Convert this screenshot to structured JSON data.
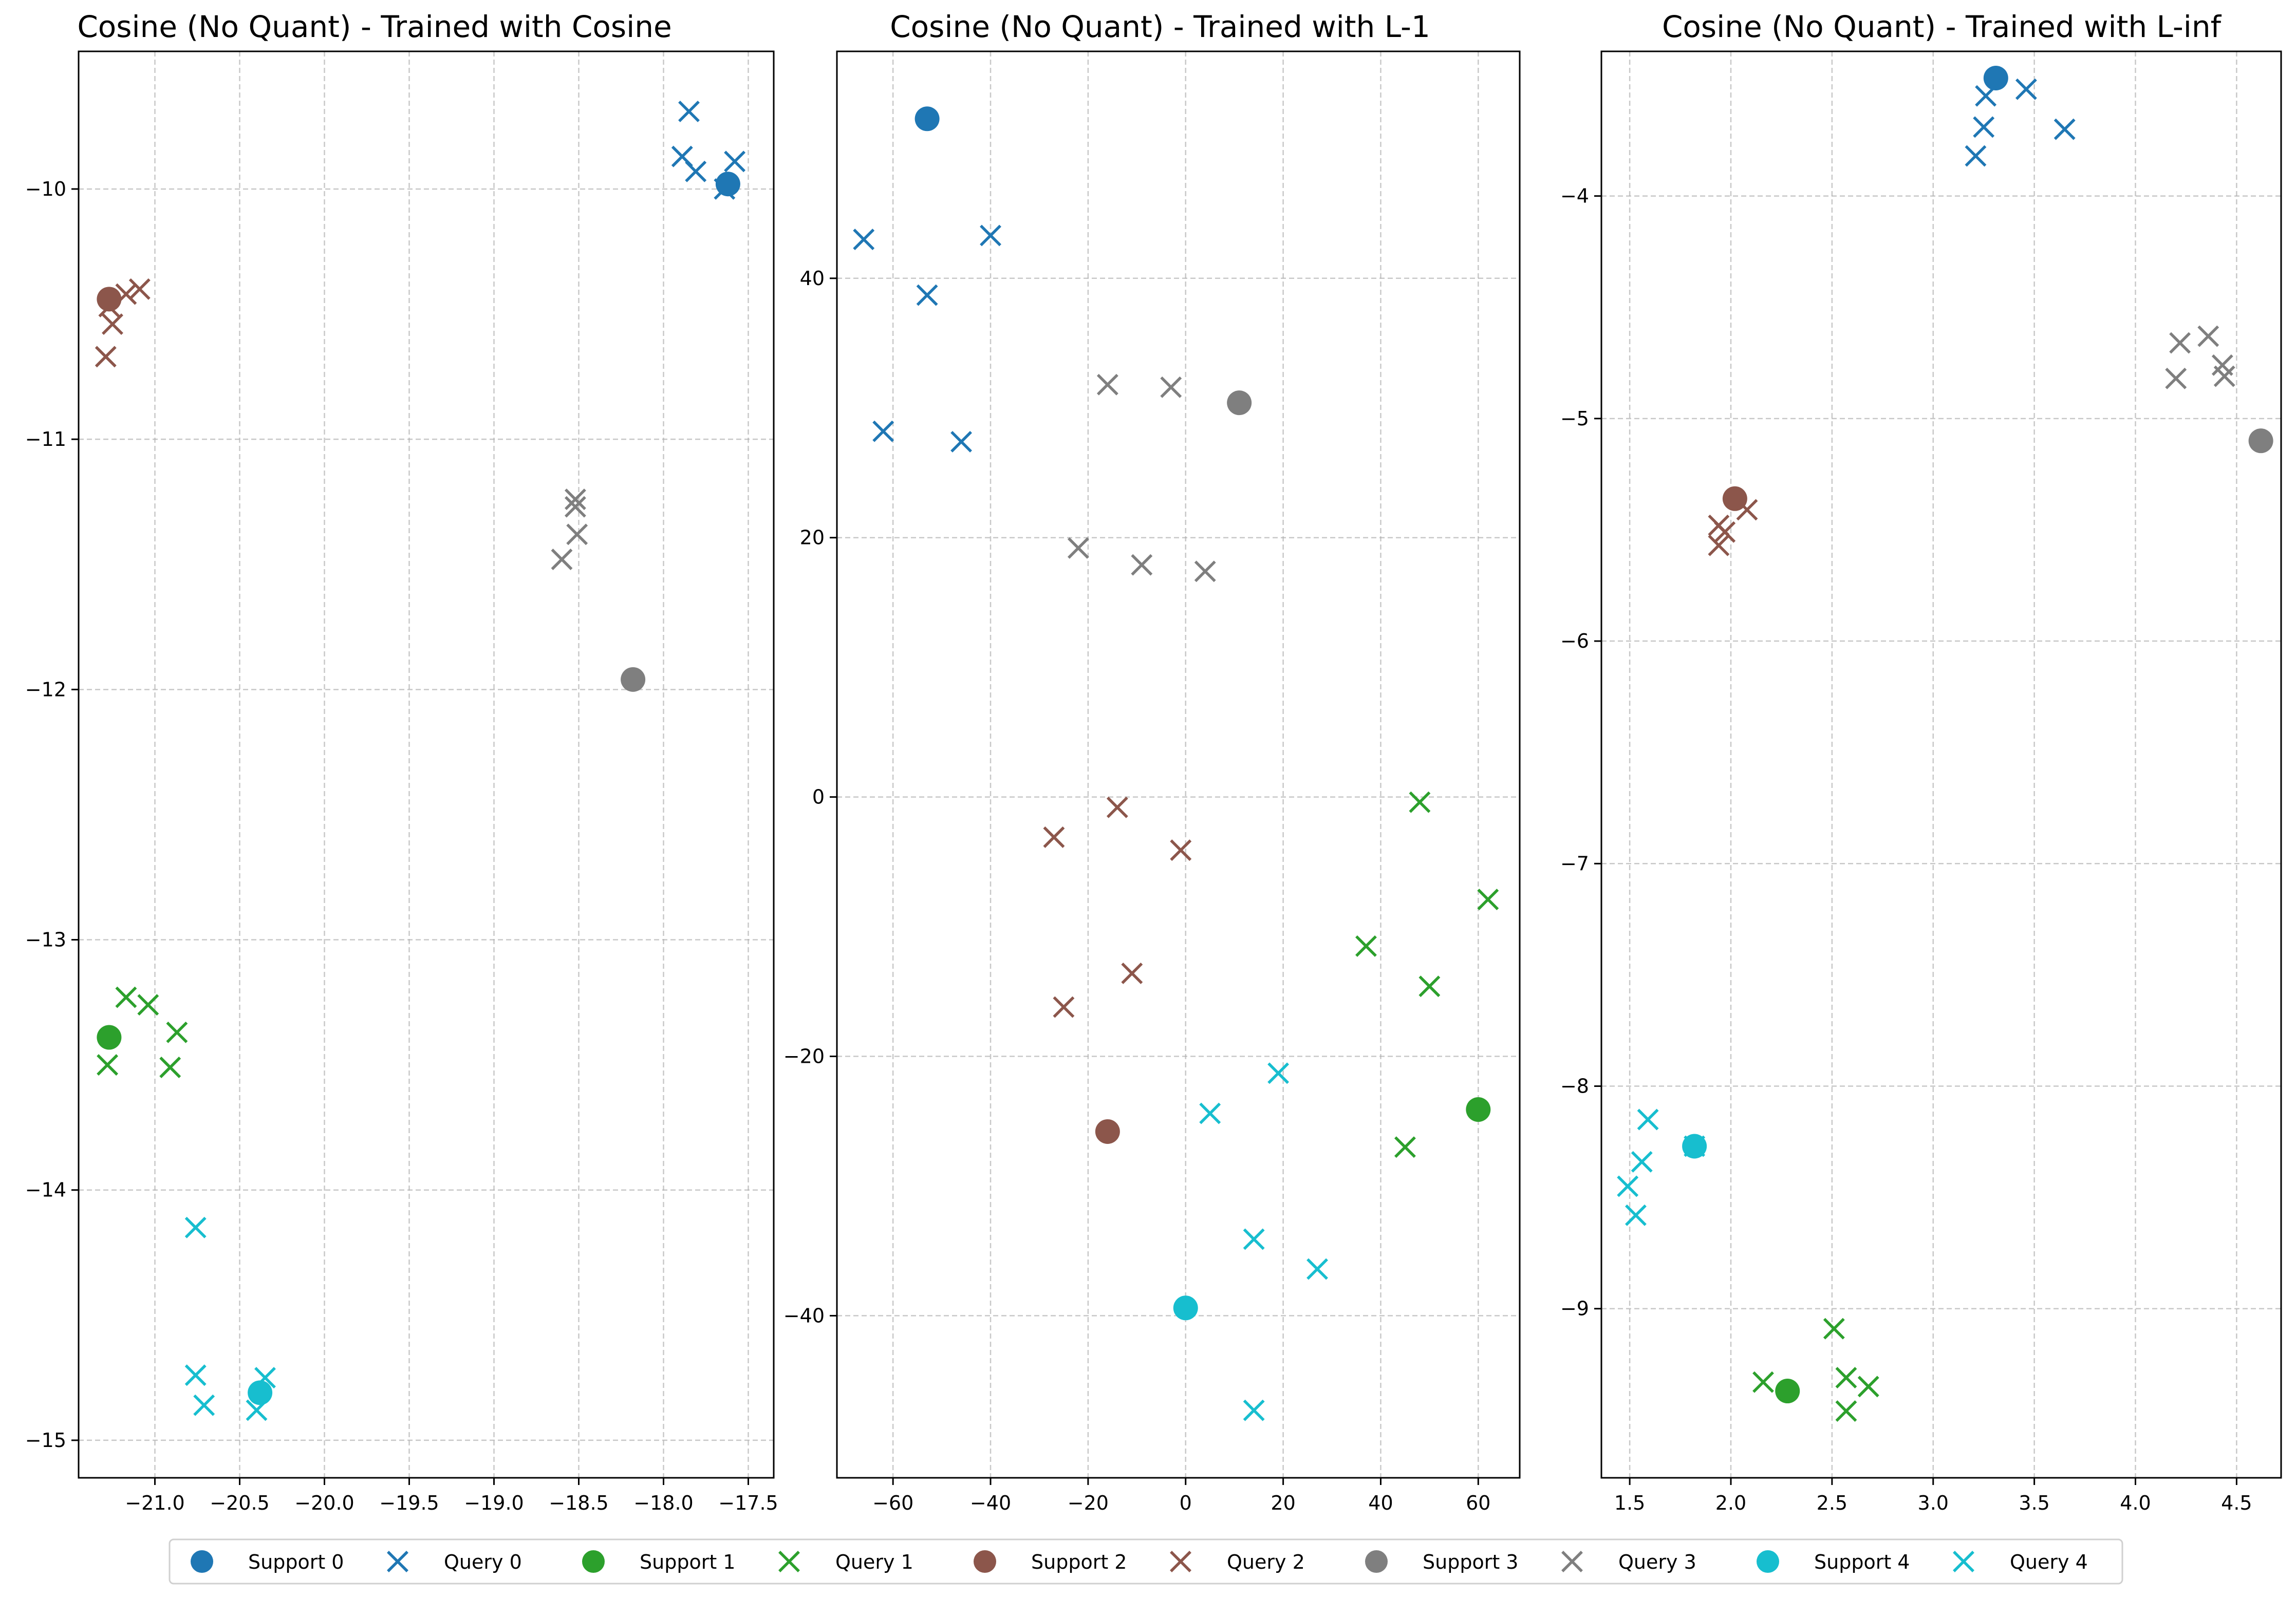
{
  "colors": {
    "class0": "#1f77b4",
    "class1": "#2ca02c",
    "class2": "#8c564b",
    "class3": "#7f7f7f",
    "class4": "#17becf",
    "grid": "#b0b0b0",
    "axis": "#000000"
  },
  "legend": {
    "placement": "bottom-center",
    "entries": [
      {
        "label": "Support 0",
        "marker": "circle",
        "class": 0
      },
      {
        "label": "Query 0",
        "marker": "x",
        "class": 0
      },
      {
        "label": "Support 1",
        "marker": "circle",
        "class": 1
      },
      {
        "label": "Query 1",
        "marker": "x",
        "class": 1
      },
      {
        "label": "Support 2",
        "marker": "circle",
        "class": 2
      },
      {
        "label": "Query 2",
        "marker": "x",
        "class": 2
      },
      {
        "label": "Support 3",
        "marker": "circle",
        "class": 3
      },
      {
        "label": "Query 3",
        "marker": "x",
        "class": 3
      },
      {
        "label": "Support 4",
        "marker": "circle",
        "class": 4
      },
      {
        "label": "Query 4",
        "marker": "x",
        "class": 4
      }
    ]
  },
  "chart_data": [
    {
      "type": "scatter",
      "title": "Cosine (No Quant) - Trained with Cosine",
      "xlabel": "",
      "ylabel": "",
      "grid": true,
      "xlim": [
        -21.45,
        -17.35
      ],
      "ylim": [
        -15.15,
        -9.45
      ],
      "xticks": [
        -21.0,
        -20.5,
        -20.0,
        -19.5,
        -19.0,
        -18.5,
        -18.0,
        -17.5
      ],
      "xtick_labels": [
        "−21.0",
        "−20.5",
        "−20.0",
        "−19.5",
        "−19.0",
        "−18.5",
        "−18.0",
        "−17.5"
      ],
      "yticks": [
        -15,
        -14,
        -13,
        -12,
        -11,
        -10
      ],
      "ytick_labels": [
        "−15",
        "−14",
        "−13",
        "−12",
        "−11",
        "−10"
      ],
      "support": [
        {
          "class": 0,
          "x": -17.62,
          "y": -9.98
        },
        {
          "class": 1,
          "x": -21.27,
          "y": -13.39
        },
        {
          "class": 2,
          "x": -21.27,
          "y": -10.44
        },
        {
          "class": 3,
          "x": -18.18,
          "y": -11.96
        },
        {
          "class": 4,
          "x": -20.38,
          "y": -14.81
        }
      ],
      "query": [
        {
          "class": 0,
          "x": -17.85,
          "y": -9.69
        },
        {
          "class": 0,
          "x": -17.89,
          "y": -9.87
        },
        {
          "class": 0,
          "x": -17.81,
          "y": -9.93
        },
        {
          "class": 0,
          "x": -17.58,
          "y": -9.89
        },
        {
          "class": 0,
          "x": -17.64,
          "y": -10.0
        },
        {
          "class": 1,
          "x": -21.17,
          "y": -13.23
        },
        {
          "class": 1,
          "x": -21.04,
          "y": -13.26
        },
        {
          "class": 1,
          "x": -20.87,
          "y": -13.37
        },
        {
          "class": 1,
          "x": -21.28,
          "y": -13.5
        },
        {
          "class": 1,
          "x": -20.91,
          "y": -13.51
        },
        {
          "class": 2,
          "x": -21.09,
          "y": -10.4
        },
        {
          "class": 2,
          "x": -21.17,
          "y": -10.42
        },
        {
          "class": 2,
          "x": -21.27,
          "y": -10.47
        },
        {
          "class": 2,
          "x": -21.25,
          "y": -10.54
        },
        {
          "class": 2,
          "x": -21.29,
          "y": -10.67
        },
        {
          "class": 3,
          "x": -18.52,
          "y": -11.24
        },
        {
          "class": 3,
          "x": -18.52,
          "y": -11.27
        },
        {
          "class": 3,
          "x": -18.51,
          "y": -11.38
        },
        {
          "class": 3,
          "x": -18.6,
          "y": -11.48
        },
        {
          "class": 4,
          "x": -20.76,
          "y": -14.15
        },
        {
          "class": 4,
          "x": -20.76,
          "y": -14.74
        },
        {
          "class": 4,
          "x": -20.35,
          "y": -14.75
        },
        {
          "class": 4,
          "x": -20.71,
          "y": -14.86
        },
        {
          "class": 4,
          "x": -20.4,
          "y": -14.88
        }
      ]
    },
    {
      "type": "scatter",
      "title": "Cosine (No Quant) - Trained with L-1",
      "xlabel": "",
      "ylabel": "",
      "grid": true,
      "xlim": [
        -71.5,
        68.5
      ],
      "ylim": [
        -52.5,
        57.5
      ],
      "xticks": [
        -60,
        -40,
        -20,
        0,
        20,
        40,
        60
      ],
      "xtick_labels": [
        "−60",
        "−40",
        "−20",
        "0",
        "20",
        "40",
        "60"
      ],
      "yticks": [
        -40,
        -20,
        0,
        20,
        40
      ],
      "ytick_labels": [
        "−40",
        "−20",
        "0",
        "20",
        "40"
      ],
      "support": [
        {
          "class": 0,
          "x": -53,
          "y": 52.3
        },
        {
          "class": 1,
          "x": 60,
          "y": -24.1
        },
        {
          "class": 2,
          "x": -16,
          "y": -25.8
        },
        {
          "class": 3,
          "x": 11,
          "y": 30.4
        },
        {
          "class": 4,
          "x": 0,
          "y": -39.4
        }
      ],
      "query": [
        {
          "class": 0,
          "x": -66,
          "y": 43.0
        },
        {
          "class": 0,
          "x": -40,
          "y": 43.3
        },
        {
          "class": 0,
          "x": -53,
          "y": 38.7
        },
        {
          "class": 0,
          "x": -62,
          "y": 28.2
        },
        {
          "class": 0,
          "x": -46,
          "y": 27.4
        },
        {
          "class": 1,
          "x": 48,
          "y": -0.4
        },
        {
          "class": 1,
          "x": 62,
          "y": -7.9
        },
        {
          "class": 1,
          "x": 37,
          "y": -11.5
        },
        {
          "class": 1,
          "x": 50,
          "y": -14.6
        },
        {
          "class": 1,
          "x": 45,
          "y": -27.0
        },
        {
          "class": 2,
          "x": -14,
          "y": -0.8
        },
        {
          "class": 2,
          "x": -27,
          "y": -3.1
        },
        {
          "class": 2,
          "x": -1,
          "y": -4.1
        },
        {
          "class": 2,
          "x": -11,
          "y": -13.6
        },
        {
          "class": 2,
          "x": -25,
          "y": -16.2
        },
        {
          "class": 3,
          "x": -16,
          "y": 31.8
        },
        {
          "class": 3,
          "x": -3,
          "y": 31.6
        },
        {
          "class": 3,
          "x": -22,
          "y": 19.2
        },
        {
          "class": 3,
          "x": -9,
          "y": 17.9
        },
        {
          "class": 3,
          "x": 4,
          "y": 17.4
        },
        {
          "class": 4,
          "x": 19,
          "y": -21.3
        },
        {
          "class": 4,
          "x": 5,
          "y": -24.4
        },
        {
          "class": 4,
          "x": 14,
          "y": -34.1
        },
        {
          "class": 4,
          "x": 27,
          "y": -36.4
        },
        {
          "class": 4,
          "x": 14,
          "y": -47.3
        }
      ]
    },
    {
      "type": "scatter",
      "title": "Cosine (No Quant) - Trained with L-inf",
      "xlabel": "",
      "ylabel": "",
      "grid": true,
      "xlim": [
        1.36,
        4.72
      ],
      "ylim": [
        -9.76,
        -3.35
      ],
      "xticks": [
        1.5,
        2.0,
        2.5,
        3.0,
        3.5,
        4.0,
        4.5
      ],
      "xtick_labels": [
        "1.5",
        "2.0",
        "2.5",
        "3.0",
        "3.5",
        "4.0",
        "4.5"
      ],
      "yticks": [
        -9,
        -8,
        -7,
        -6,
        -5,
        -4
      ],
      "ytick_labels": [
        "−9",
        "−8",
        "−7",
        "−6",
        "−5",
        "−4"
      ],
      "support": [
        {
          "class": 0,
          "x": 3.31,
          "y": -3.47
        },
        {
          "class": 1,
          "x": 2.28,
          "y": -9.37
        },
        {
          "class": 2,
          "x": 2.02,
          "y": -5.36
        },
        {
          "class": 3,
          "x": 4.62,
          "y": -5.1
        },
        {
          "class": 4,
          "x": 1.82,
          "y": -8.27
        }
      ],
      "query": [
        {
          "class": 0,
          "x": 3.46,
          "y": -3.52
        },
        {
          "class": 0,
          "x": 3.26,
          "y": -3.55
        },
        {
          "class": 0,
          "x": 3.25,
          "y": -3.69
        },
        {
          "class": 0,
          "x": 3.65,
          "y": -3.7
        },
        {
          "class": 0,
          "x": 3.21,
          "y": -3.82
        },
        {
          "class": 1,
          "x": 2.51,
          "y": -9.09
        },
        {
          "class": 1,
          "x": 2.16,
          "y": -9.33
        },
        {
          "class": 1,
          "x": 2.57,
          "y": -9.31
        },
        {
          "class": 1,
          "x": 2.68,
          "y": -9.35
        },
        {
          "class": 1,
          "x": 2.57,
          "y": -9.46
        },
        {
          "class": 2,
          "x": 2.08,
          "y": -5.41
        },
        {
          "class": 2,
          "x": 1.94,
          "y": -5.48
        },
        {
          "class": 2,
          "x": 1.97,
          "y": -5.51
        },
        {
          "class": 2,
          "x": 1.94,
          "y": -5.57
        },
        {
          "class": 3,
          "x": 4.36,
          "y": -4.63
        },
        {
          "class": 3,
          "x": 4.22,
          "y": -4.66
        },
        {
          "class": 3,
          "x": 4.43,
          "y": -4.76
        },
        {
          "class": 3,
          "x": 4.2,
          "y": -4.82
        },
        {
          "class": 3,
          "x": 4.44,
          "y": -4.81
        },
        {
          "class": 4,
          "x": 1.59,
          "y": -8.15
        },
        {
          "class": 4,
          "x": 1.82,
          "y": -8.27
        },
        {
          "class": 4,
          "x": 1.56,
          "y": -8.34
        },
        {
          "class": 4,
          "x": 1.49,
          "y": -8.45
        },
        {
          "class": 4,
          "x": 1.53,
          "y": -8.58
        }
      ]
    }
  ]
}
